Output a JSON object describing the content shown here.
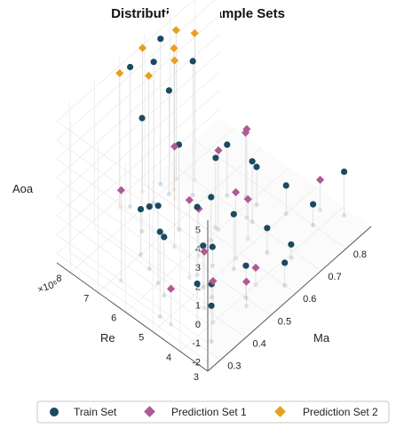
{
  "chart_data": {
    "type": "scatter3d",
    "title": "Distribution of Sample Sets",
    "axes": {
      "x": {
        "label": "Ma",
        "range": [
          0.25,
          0.9
        ],
        "ticks": [
          "0.3",
          "0.4",
          "0.5",
          "0.6",
          "0.7",
          "0.8"
        ]
      },
      "y": {
        "label": "Re",
        "range": [
          3,
          8.5
        ],
        "ticks": [
          "3",
          "4",
          "5",
          "6",
          "7",
          "8"
        ],
        "multiplier": "×10⁶"
      },
      "z": {
        "label": "Aoa",
        "range": [
          -2.5,
          5.5
        ],
        "ticks": [
          "-2",
          "-1",
          "0",
          "1",
          "2",
          "3",
          "4",
          "5"
        ]
      }
    },
    "series": [
      {
        "name": "Train Set",
        "marker": "circle",
        "color": "#1b4a63",
        "points": [
          {
            "ma": 0.3,
            "re": 5.2,
            "aoa": 2.0
          },
          {
            "ma": 0.4,
            "re": 6.5,
            "aoa": 0.8
          },
          {
            "ma": 0.55,
            "re": 4.8,
            "aoa": 0.4
          },
          {
            "ma": 0.62,
            "re": 6.1,
            "aoa": 1.2
          },
          {
            "ma": 0.7,
            "re": 5.5,
            "aoa": 0.7
          },
          {
            "ma": 0.75,
            "re": 5.8,
            "aoa": -0.5
          },
          {
            "ma": 0.45,
            "re": 5.0,
            "aoa": -0.3
          },
          {
            "ma": 0.35,
            "re": 4.3,
            "aoa": -0.4
          },
          {
            "ma": 0.5,
            "re": 3.9,
            "aoa": -0.8
          },
          {
            "ma": 0.65,
            "re": 4.5,
            "aoa": -1.2
          },
          {
            "ma": 0.8,
            "re": 4.2,
            "aoa": -1.4
          },
          {
            "ma": 0.6,
            "re": 3.4,
            "aoa": -1.3
          },
          {
            "ma": 0.42,
            "re": 7.0,
            "aoa": -0.1
          },
          {
            "ma": 0.55,
            "re": 6.8,
            "aoa": 2.0
          },
          {
            "ma": 0.38,
            "re": 6.0,
            "aoa": 1.6
          },
          {
            "ma": 0.48,
            "re": 7.5,
            "aoa": 3.5
          },
          {
            "ma": 0.62,
            "re": 7.8,
            "aoa": 3.0
          },
          {
            "ma": 0.88,
            "re": 3.8,
            "aoa": -0.2
          },
          {
            "ma": 0.33,
            "re": 3.6,
            "aoa": -0.6
          },
          {
            "ma": 0.72,
            "re": 6.6,
            "aoa": 0.2
          },
          {
            "ma": 0.58,
            "re": 5.9,
            "aoa": -0.2
          },
          {
            "ma": 0.52,
            "re": 5.3,
            "aoa": -1.5
          },
          {
            "ma": 0.44,
            "re": 4.6,
            "aoa": -1.8
          },
          {
            "ma": 0.68,
            "re": 3.9,
            "aoa": -1.8
          },
          {
            "ma": 0.78,
            "re": 5.0,
            "aoa": -1.0
          },
          {
            "ma": 0.36,
            "re": 5.6,
            "aoa": 0.6
          },
          {
            "ma": 0.57,
            "re": 7.9,
            "aoa": 5.0
          },
          {
            "ma": 0.63,
            "re": 8.2,
            "aoa": 5.2
          },
          {
            "ma": 0.52,
            "re": 8.3,
            "aoa": 4.9
          },
          {
            "ma": 0.66,
            "re": 7.3,
            "aoa": 4.6
          },
          {
            "ma": 0.47,
            "re": 5.4,
            "aoa": 1.1
          }
        ]
      },
      {
        "name": "Prediction Set 1",
        "marker": "diamond",
        "color": "#b05a93",
        "points": [
          {
            "ma": 0.32,
            "re": 6.8,
            "aoa": 2.3
          },
          {
            "ma": 0.5,
            "re": 6.5,
            "aoa": 2.8
          },
          {
            "ma": 0.7,
            "re": 5.7,
            "aoa": 2.2
          },
          {
            "ma": 0.58,
            "re": 5.0,
            "aoa": 1.0
          },
          {
            "ma": 0.45,
            "re": 5.5,
            "aoa": 1.6
          },
          {
            "ma": 0.4,
            "re": 4.5,
            "aoa": 0.5
          },
          {
            "ma": 0.85,
            "re": 4.4,
            "aoa": -0.9
          },
          {
            "ma": 0.65,
            "re": 5.2,
            "aoa": -0.4
          },
          {
            "ma": 0.3,
            "re": 4.8,
            "aoa": -0.6
          },
          {
            "ma": 0.55,
            "re": 4.0,
            "aoa": -1.6
          },
          {
            "ma": 0.62,
            "re": 6.0,
            "aoa": 1.7
          },
          {
            "ma": 0.48,
            "re": 3.7,
            "aoa": -1.2
          },
          {
            "ma": 0.75,
            "re": 6.2,
            "aoa": 0.9
          },
          {
            "ma": 0.52,
            "re": 5.8,
            "aoa": 0.0
          },
          {
            "ma": 0.38,
            "re": 4.0,
            "aoa": -0.3
          }
        ]
      },
      {
        "name": "Prediction Set 2",
        "marker": "diamond",
        "color": "#e8a020",
        "points": [
          {
            "ma": 0.58,
            "re": 8.4,
            "aoa": 5.1
          },
          {
            "ma": 0.67,
            "re": 8.0,
            "aoa": 5.4
          },
          {
            "ma": 0.7,
            "re": 7.6,
            "aoa": 5.3
          },
          {
            "ma": 0.5,
            "re": 8.5,
            "aoa": 4.6
          },
          {
            "ma": 0.62,
            "re": 7.6,
            "aoa": 4.8
          },
          {
            "ma": 0.55,
            "re": 7.9,
            "aoa": 4.5
          },
          {
            "ma": 0.64,
            "re": 7.8,
            "aoa": 5.0
          }
        ]
      }
    ],
    "legend": {
      "position": "bottom",
      "items": [
        "Train Set",
        "Prediction Set 1",
        "Prediction Set 2"
      ]
    },
    "grid": true
  }
}
